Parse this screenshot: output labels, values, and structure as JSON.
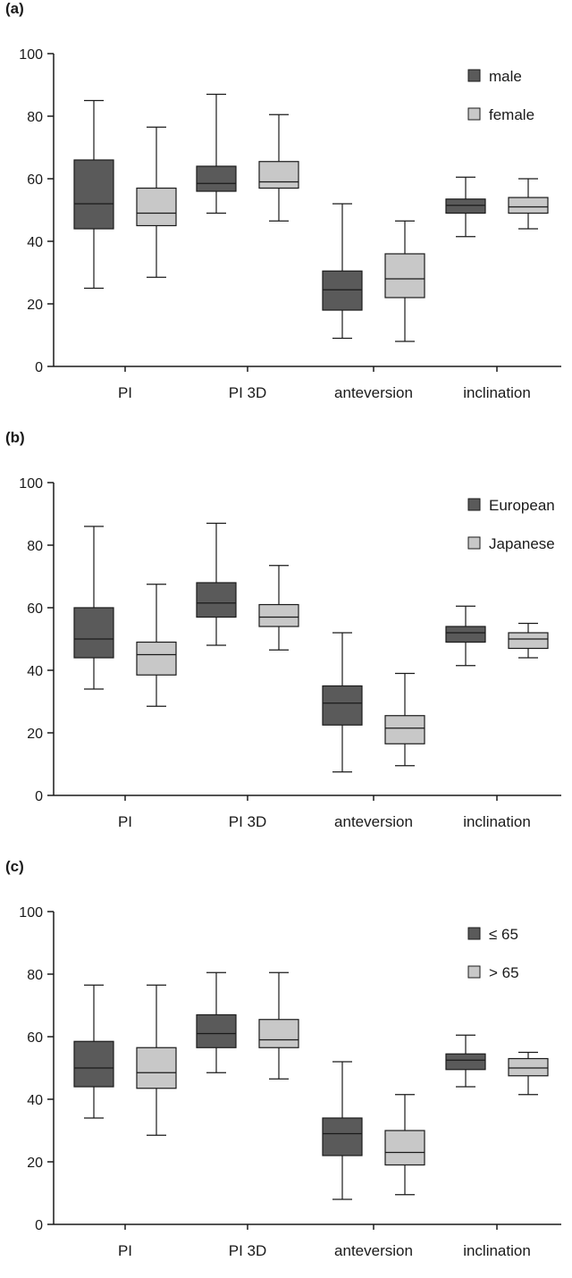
{
  "colors": {
    "dark": "#5a5a5a",
    "light": "#c8c8c8",
    "line": "#1a1a1a"
  },
  "chart_data": [
    {
      "type": "boxplot",
      "panel_label": "(a)",
      "categories": [
        "PI",
        "PI 3D",
        "anteversion",
        "inclination"
      ],
      "ylim": [
        0,
        100
      ],
      "yticks": [
        "0",
        "20",
        "40",
        "60",
        "80",
        "100"
      ],
      "legend_position": "top-right",
      "series": [
        {
          "name": "male",
          "color": "dark",
          "boxes": [
            {
              "min": 25,
              "q1": 44,
              "median": 52,
              "q3": 66,
              "max": 85
            },
            {
              "min": 49,
              "q1": 56,
              "median": 58.5,
              "q3": 64,
              "max": 87
            },
            {
              "min": 9,
              "q1": 18,
              "median": 24.5,
              "q3": 30.5,
              "max": 52
            },
            {
              "min": 41.5,
              "q1": 49,
              "median": 51.5,
              "q3": 53.5,
              "max": 60.5
            }
          ]
        },
        {
          "name": "female",
          "color": "light",
          "boxes": [
            {
              "min": 28.5,
              "q1": 45,
              "median": 49,
              "q3": 57,
              "max": 76.5
            },
            {
              "min": 46.5,
              "q1": 57,
              "median": 59,
              "q3": 65.5,
              "max": 80.5
            },
            {
              "min": 8,
              "q1": 22,
              "median": 28,
              "q3": 36,
              "max": 46.5
            },
            {
              "min": 44,
              "q1": 49,
              "median": 51,
              "q3": 54,
              "max": 60
            }
          ]
        }
      ]
    },
    {
      "type": "boxplot",
      "panel_label": "(b)",
      "categories": [
        "PI",
        "PI 3D",
        "anteversion",
        "inclination"
      ],
      "ylim": [
        0,
        100
      ],
      "yticks": [
        "0",
        "20",
        "40",
        "60",
        "80",
        "100"
      ],
      "legend_position": "top-right",
      "series": [
        {
          "name": "European",
          "color": "dark",
          "boxes": [
            {
              "min": 34,
              "q1": 44,
              "median": 50,
              "q3": 60,
              "max": 86
            },
            {
              "min": 48,
              "q1": 57,
              "median": 61.5,
              "q3": 68,
              "max": 87
            },
            {
              "min": 7.5,
              "q1": 22.5,
              "median": 29.5,
              "q3": 35,
              "max": 52
            },
            {
              "min": 41.5,
              "q1": 49,
              "median": 52,
              "q3": 54,
              "max": 60.5
            }
          ]
        },
        {
          "name": "Japanese",
          "color": "light",
          "boxes": [
            {
              "min": 28.5,
              "q1": 38.5,
              "median": 45,
              "q3": 49,
              "max": 67.5
            },
            {
              "min": 46.5,
              "q1": 54,
              "median": 57,
              "q3": 61,
              "max": 73.5
            },
            {
              "min": 9.5,
              "q1": 16.5,
              "median": 21.5,
              "q3": 25.5,
              "max": 39
            },
            {
              "min": 44,
              "q1": 47,
              "median": 50,
              "q3": 52,
              "max": 55
            }
          ]
        }
      ]
    },
    {
      "type": "boxplot",
      "panel_label": "(c)",
      "categories": [
        "PI",
        "PI 3D",
        "anteversion",
        "inclination"
      ],
      "ylim": [
        0,
        100
      ],
      "yticks": [
        "0",
        "20",
        "40",
        "60",
        "80",
        "100"
      ],
      "legend_position": "top-right",
      "series": [
        {
          "name": "≤ 65",
          "color": "dark",
          "boxes": [
            {
              "min": 34,
              "q1": 44,
              "median": 50,
              "q3": 58.5,
              "max": 76.5
            },
            {
              "min": 48.5,
              "q1": 56.5,
              "median": 61,
              "q3": 67,
              "max": 80.5
            },
            {
              "min": 8,
              "q1": 22,
              "median": 29,
              "q3": 34,
              "max": 52
            },
            {
              "min": 44,
              "q1": 49.5,
              "median": 52.5,
              "q3": 54.5,
              "max": 60.5
            }
          ]
        },
        {
          "name": "> 65",
          "color": "light",
          "boxes": [
            {
              "min": 28.5,
              "q1": 43.5,
              "median": 48.5,
              "q3": 56.5,
              "max": 76.5
            },
            {
              "min": 46.5,
              "q1": 56.5,
              "median": 59,
              "q3": 65.5,
              "max": 80.5
            },
            {
              "min": 9.5,
              "q1": 19,
              "median": 23,
              "q3": 30,
              "max": 41.5
            },
            {
              "min": 41.5,
              "q1": 47.5,
              "median": 50,
              "q3": 53,
              "max": 55
            }
          ]
        }
      ]
    }
  ]
}
